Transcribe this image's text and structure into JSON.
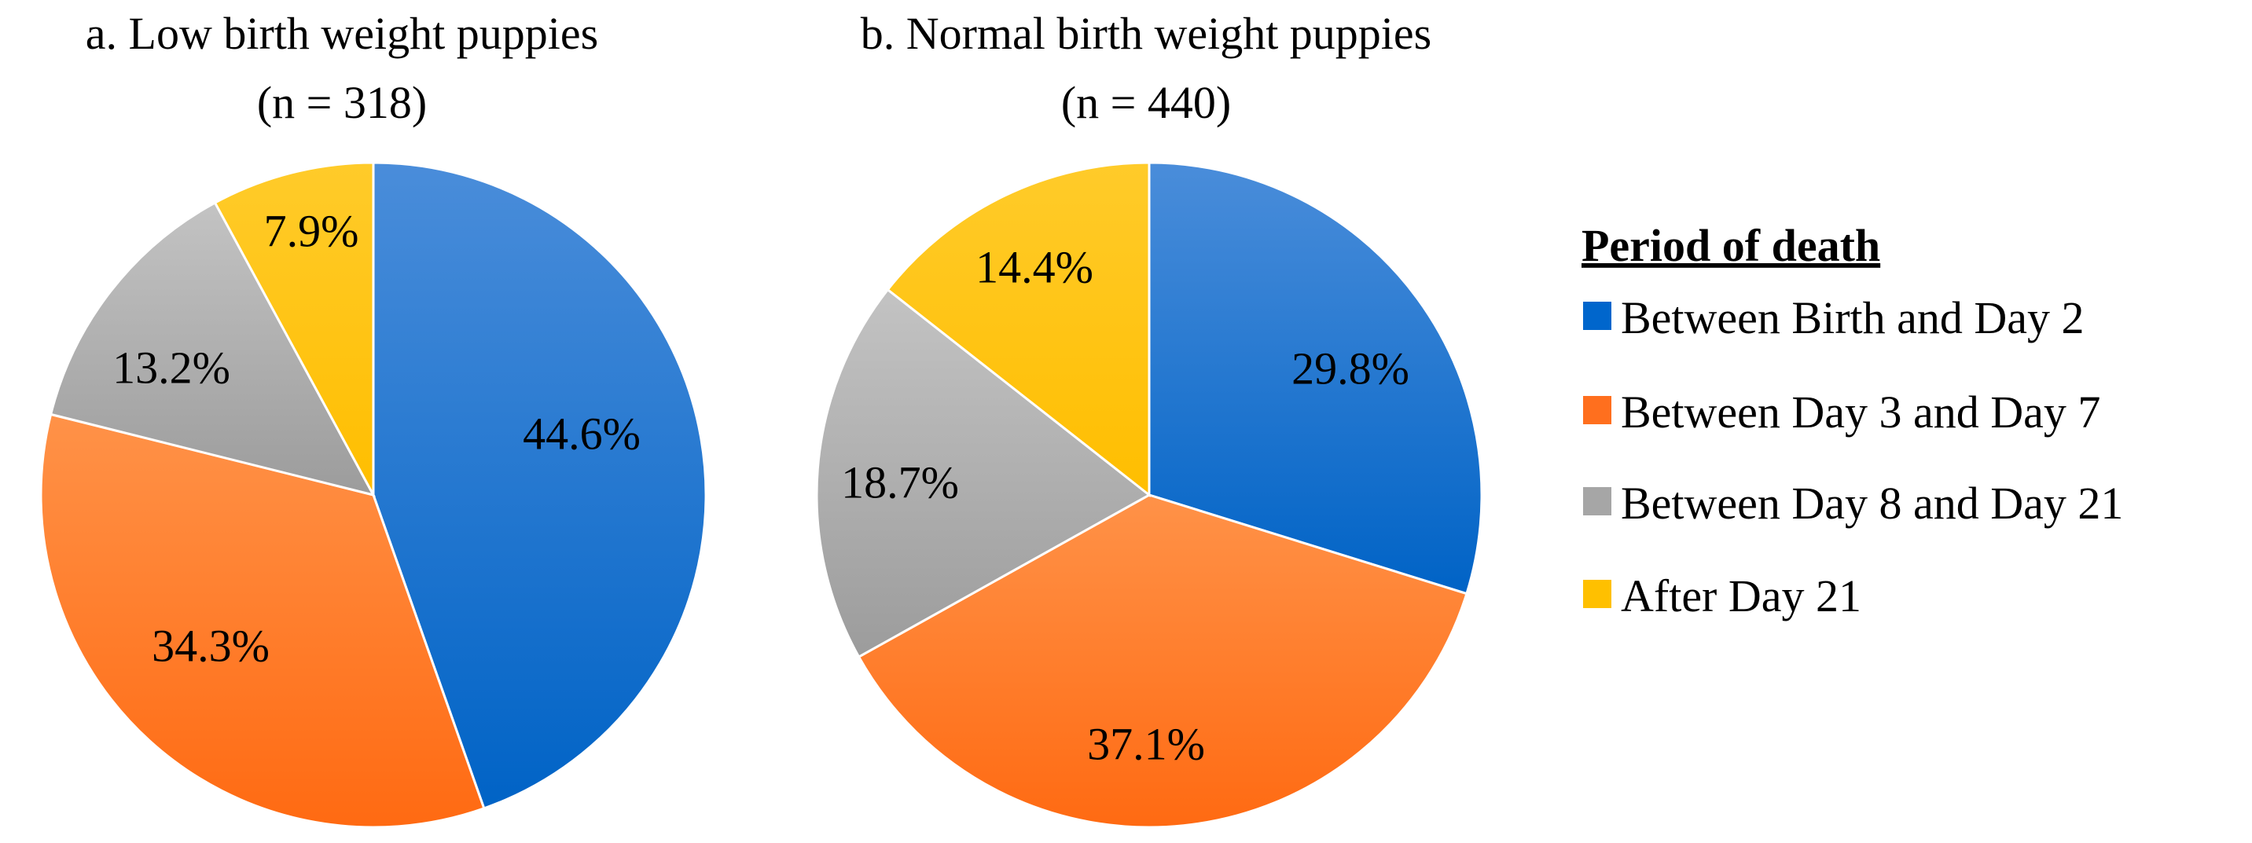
{
  "legend": {
    "title": "Period of death",
    "entries": [
      {
        "label": "Between Birth and Day 2",
        "color": "#0066CC"
      },
      {
        "label": "Between Day 3 and Day 7",
        "color": "#FF6F1E"
      },
      {
        "label": "Between Day 8 and Day 21",
        "color": "#A6A6A6"
      },
      {
        "label": "After Day 21",
        "color": "#FFC000"
      }
    ]
  },
  "chart_data": [
    {
      "type": "pie",
      "title": "a. Low birth weight puppies",
      "subtitle": "(n = 318)",
      "categories": [
        "Between Birth and Day 2",
        "Between Day 3 and Day 7",
        "Between Day 8 and Day 21",
        "After Day 21"
      ],
      "values": [
        44.6,
        34.3,
        13.2,
        7.9
      ],
      "labels": [
        "44.6%",
        "34.3%",
        "13.2%",
        "7.9%"
      ],
      "colors": [
        "#0066CC",
        "#FF6F1E",
        "#A6A6A6",
        "#FFC000"
      ],
      "legend": "right"
    },
    {
      "type": "pie",
      "title": "b. Normal birth weight puppies",
      "subtitle": "(n = 440)",
      "categories": [
        "Between Birth and Day 2",
        "Between Day 3 and Day 7",
        "Between Day 8 and Day 21",
        "After Day 21"
      ],
      "values": [
        29.8,
        37.1,
        18.7,
        14.4
      ],
      "labels": [
        "29.8%",
        "37.1%",
        "18.7%",
        "14.4%"
      ],
      "colors": [
        "#0066CC",
        "#FF6F1E",
        "#A6A6A6",
        "#FFC000"
      ],
      "legend": "right"
    }
  ]
}
